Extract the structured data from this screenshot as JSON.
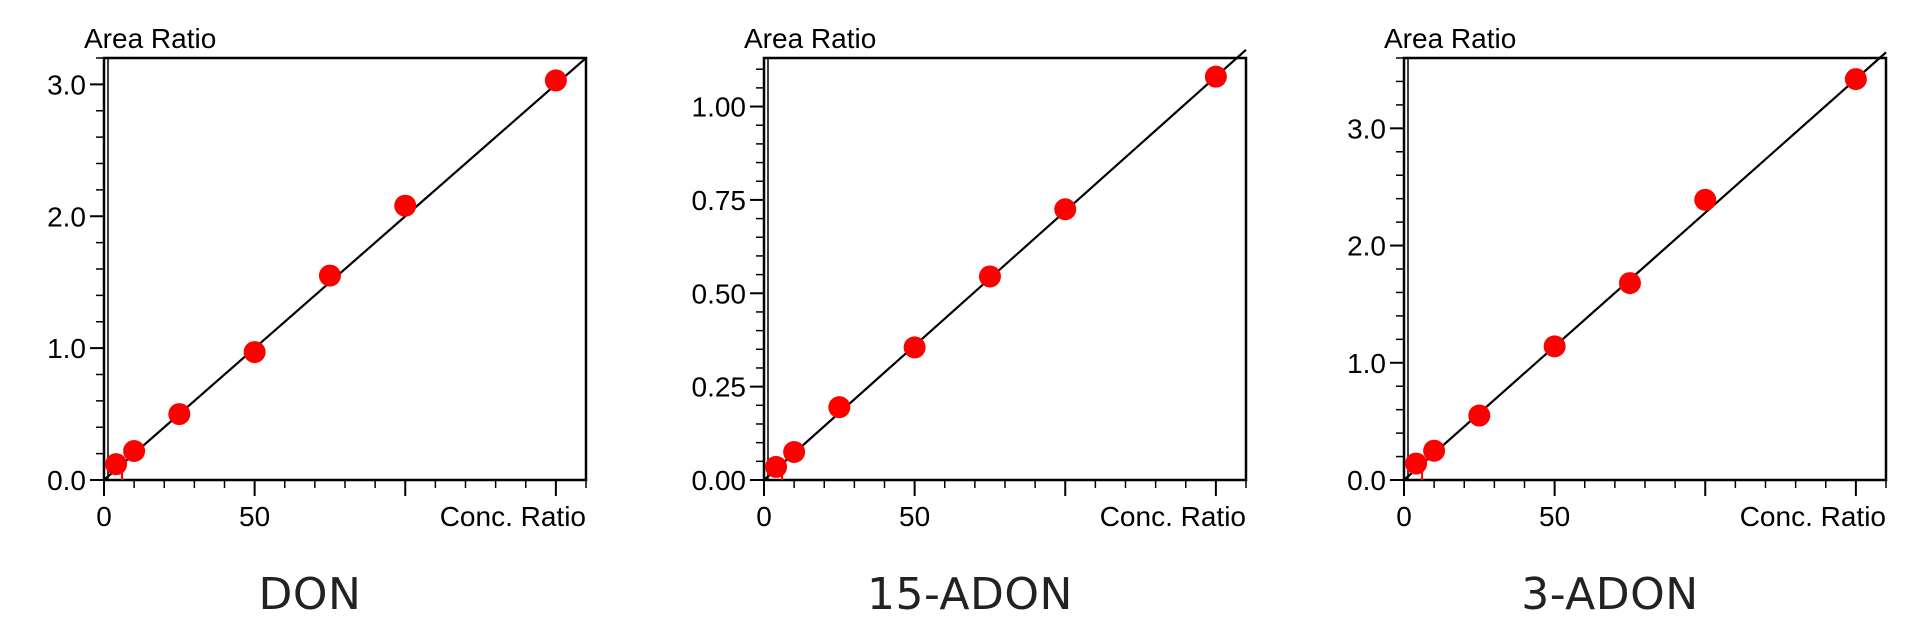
{
  "chart_data": [
    {
      "type": "scatter",
      "title": "DON",
      "ylabel": "Area Ratio",
      "xlabel": "Conc. Ratio",
      "xlim": [
        0,
        160
      ],
      "ylim": [
        0,
        3.2
      ],
      "x_ticks": [
        "0",
        "50"
      ],
      "y_ticks": [
        "0.0",
        "1.0",
        "2.0",
        "3.0"
      ],
      "y_tick_values": [
        0,
        1,
        2,
        3
      ],
      "fit_line": {
        "slope": 0.02,
        "intercept": 0.0
      },
      "x": [
        4,
        10,
        25,
        50,
        75,
        100,
        150
      ],
      "y": [
        0.12,
        0.22,
        0.5,
        0.97,
        1.55,
        2.08,
        3.03
      ]
    },
    {
      "type": "scatter",
      "title": "15-ADON",
      "ylabel": "Area Ratio",
      "xlabel": "Conc. Ratio",
      "xlim": [
        0,
        160
      ],
      "ylim": [
        0,
        1.13
      ],
      "x_ticks": [
        "0",
        "50"
      ],
      "y_ticks": [
        "0.00",
        "0.25",
        "0.50",
        "0.75",
        "1.00"
      ],
      "y_tick_values": [
        0,
        0.25,
        0.5,
        0.75,
        1.0
      ],
      "fit_line": {
        "slope": 0.0072,
        "intercept": 0.0
      },
      "x": [
        4,
        10,
        25,
        50,
        75,
        100,
        150
      ],
      "y": [
        0.035,
        0.075,
        0.195,
        0.355,
        0.545,
        0.725,
        1.08
      ]
    },
    {
      "type": "scatter",
      "title": "3-ADON",
      "ylabel": "Area Ratio",
      "xlabel": "Conc. Ratio",
      "xlim": [
        0,
        160
      ],
      "ylim": [
        0,
        3.6
      ],
      "x_ticks": [
        "0",
        "50"
      ],
      "y_ticks": [
        "0.0",
        "1.0",
        "2.0",
        "3.0"
      ],
      "y_tick_values": [
        0,
        1,
        2,
        3
      ],
      "fit_line": {
        "slope": 0.0228,
        "intercept": 0.0
      },
      "x": [
        4,
        10,
        25,
        50,
        75,
        100,
        150
      ],
      "y": [
        0.14,
        0.25,
        0.55,
        1.14,
        1.68,
        2.39,
        3.42
      ]
    }
  ],
  "colors": {
    "marker": "#ff0000",
    "line": "#000000",
    "axis": "#000000"
  }
}
